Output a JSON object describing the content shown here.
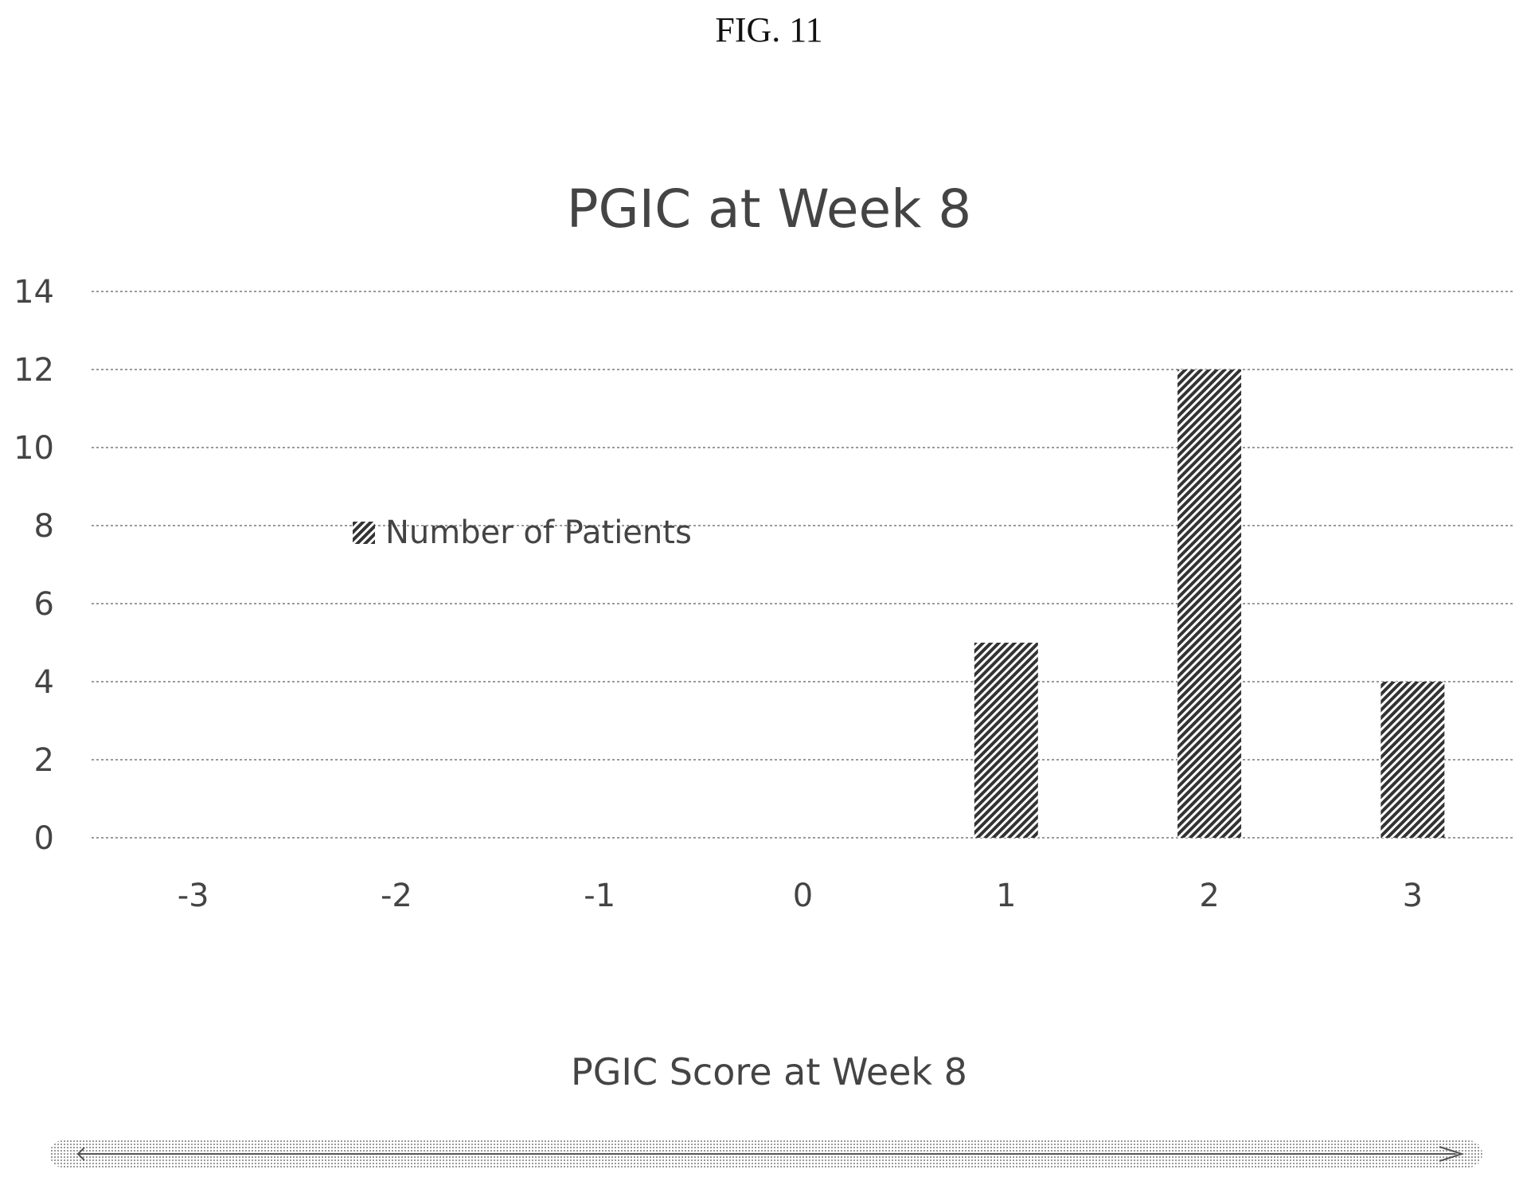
{
  "figure_label": "FIG. 11",
  "chart_data": {
    "type": "bar",
    "title": "PGIC at Week 8",
    "xlabel": "PGIC Score at Week 8",
    "ylabel": "",
    "categories": [
      "-3",
      "-2",
      "-1",
      "0",
      "1",
      "2",
      "3"
    ],
    "series": [
      {
        "name": "Number of Patients",
        "values": [
          0,
          0,
          0,
          0,
          5,
          12,
          4
        ]
      }
    ],
    "yticks": [
      "0",
      "2",
      "4",
      "6",
      "8",
      "10",
      "12",
      "14"
    ],
    "ylim": [
      0,
      14
    ],
    "grid": true,
    "legend": "left-center",
    "bar_fill": "hatched",
    "colors": {
      "bar": "#333333",
      "grid": "#9a9a9a",
      "text": "#444444"
    }
  }
}
